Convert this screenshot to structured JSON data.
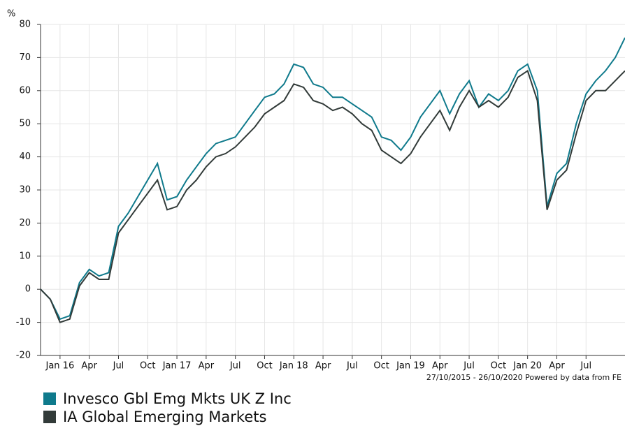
{
  "chart_data": {
    "type": "line",
    "y_label": "%",
    "annotation": "27/10/2015 - 26/10/2020 Powered by data from FE",
    "x": [
      "2015-11",
      "2015-12",
      "2016-01",
      "2016-02",
      "2016-03",
      "2016-04",
      "2016-05",
      "2016-06",
      "2016-07",
      "2016-08",
      "2016-09",
      "2016-10",
      "2016-11",
      "2016-12",
      "2017-01",
      "2017-02",
      "2017-03",
      "2017-04",
      "2017-05",
      "2017-06",
      "2017-07",
      "2017-08",
      "2017-09",
      "2017-10",
      "2017-11",
      "2017-12",
      "2018-01",
      "2018-02",
      "2018-03",
      "2018-04",
      "2018-05",
      "2018-06",
      "2018-07",
      "2018-08",
      "2018-09",
      "2018-10",
      "2018-11",
      "2018-12",
      "2019-01",
      "2019-02",
      "2019-03",
      "2019-04",
      "2019-05",
      "2019-06",
      "2019-07",
      "2019-08",
      "2019-09",
      "2019-10",
      "2019-11",
      "2019-12",
      "2020-01",
      "2020-02",
      "2020-03",
      "2020-04",
      "2020-05",
      "2020-06",
      "2020-07",
      "2020-08",
      "2020-09",
      "2020-10",
      "2020-11"
    ],
    "series": [
      {
        "name": "Invesco Gbl Emg Mkts UK Z Inc",
        "color": "#0f7a8c",
        "values": [
          0,
          -3,
          -9,
          -8,
          2,
          6,
          4,
          5,
          19,
          23,
          28,
          33,
          38,
          27,
          28,
          33,
          37,
          41,
          44,
          45,
          46,
          50,
          54,
          58,
          59,
          62,
          68,
          67,
          62,
          61,
          58,
          58,
          56,
          54,
          52,
          46,
          45,
          42,
          46,
          52,
          56,
          60,
          53,
          59,
          63,
          55,
          59,
          57,
          60,
          66,
          68,
          60,
          25,
          35,
          38,
          50,
          59,
          63,
          66,
          70,
          76
        ]
      },
      {
        "name": "IA Global Emerging Markets",
        "color": "#323b39",
        "values": [
          0,
          -3,
          -10,
          -9,
          1,
          5,
          3,
          3,
          17,
          21,
          25,
          29,
          33,
          24,
          25,
          30,
          33,
          37,
          40,
          41,
          43,
          46,
          49,
          53,
          55,
          57,
          62,
          61,
          57,
          56,
          54,
          55,
          53,
          50,
          48,
          42,
          40,
          38,
          41,
          46,
          50,
          54,
          48,
          55,
          60,
          55,
          57,
          55,
          58,
          64,
          66,
          57,
          24,
          33,
          36,
          47,
          57,
          60,
          60,
          63,
          66
        ]
      }
    ],
    "xlim": [
      "2015-11",
      "2020-11"
    ],
    "xticks": [
      {
        "value": "2016-01",
        "label": "Jan 16"
      },
      {
        "value": "2016-04",
        "label": "Apr"
      },
      {
        "value": "2016-07",
        "label": "Jul"
      },
      {
        "value": "2016-10",
        "label": "Oct"
      },
      {
        "value": "2017-01",
        "label": "Jan 17"
      },
      {
        "value": "2017-04",
        "label": "Apr"
      },
      {
        "value": "2017-07",
        "label": "Jul"
      },
      {
        "value": "2017-10",
        "label": "Oct"
      },
      {
        "value": "2018-01",
        "label": "Jan 18"
      },
      {
        "value": "2018-04",
        "label": "Apr"
      },
      {
        "value": "2018-07",
        "label": "Jul"
      },
      {
        "value": "2018-10",
        "label": "Oct"
      },
      {
        "value": "2019-01",
        "label": "Jan 19"
      },
      {
        "value": "2019-04",
        "label": "Apr"
      },
      {
        "value": "2019-07",
        "label": "Jul"
      },
      {
        "value": "2019-10",
        "label": "Oct"
      },
      {
        "value": "2020-01",
        "label": "Jan 20"
      },
      {
        "value": "2020-04",
        "label": "Apr"
      },
      {
        "value": "2020-07",
        "label": "Jul"
      }
    ],
    "ylim": [
      -20,
      80
    ],
    "yticks": [
      -20,
      -10,
      0,
      10,
      20,
      30,
      40,
      50,
      60,
      70,
      80
    ],
    "grid": true
  }
}
